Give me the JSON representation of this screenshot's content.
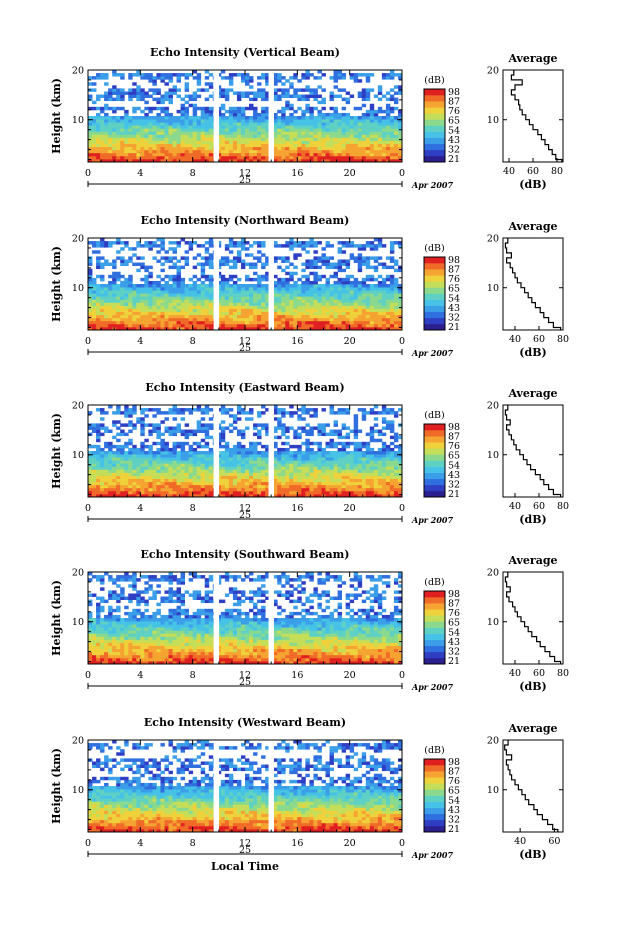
{
  "colors": {
    "scale": [
      "#2b1e8f",
      "#2f3fc4",
      "#2f6fe0",
      "#3a9ee8",
      "#46c2e6",
      "#5fd1c4",
      "#8ad98c",
      "#c4de5a",
      "#efd13c",
      "#f5a432",
      "#f06a28",
      "#e02020"
    ],
    "background": "#ffffff",
    "frame": "#000000",
    "gap": "#ffffff"
  },
  "chart_data": [
    {
      "type": "heatmap",
      "title": "Echo Intensity (Vertical Beam)",
      "ylabel": "Height (km)",
      "y_ticks": [
        "20",
        "10"
      ],
      "x_ticks": [
        "0",
        "4",
        "8",
        "12",
        "16",
        "20",
        "0"
      ],
      "date_label": "25",
      "month_label": "Apr 2007",
      "xlim": [
        0,
        24
      ],
      "ylim": [
        1.5,
        20
      ],
      "data_gaps_hours": [
        [
          9.6,
          9.9
        ],
        [
          13.8,
          14.1
        ]
      ],
      "colorbar": {
        "label": "(dB)",
        "ticks": [
          "98",
          "87",
          "76",
          "65",
          "54",
          "43",
          "32",
          "21"
        ]
      },
      "profile": {
        "title": "Average",
        "xlabel": "(dB)",
        "x_ticks": [
          "40",
          "60",
          "80"
        ],
        "y_ticks": [
          "20",
          "10"
        ],
        "xlim": [
          35,
          85
        ],
        "heights": [
          2,
          3,
          4,
          5,
          6,
          7,
          8,
          9,
          10,
          11,
          12,
          13,
          14,
          15,
          16,
          17,
          18,
          19,
          20
        ],
        "values": [
          84,
          79,
          76,
          73,
          70,
          67,
          64,
          60,
          57,
          54,
          51,
          49,
          48,
          45,
          42,
          45,
          51,
          42,
          44
        ]
      }
    },
    {
      "type": "heatmap",
      "title": "Echo Intensity (Northward Beam)",
      "ylabel": "Height (km)",
      "y_ticks": [
        "20",
        "10"
      ],
      "x_ticks": [
        "0",
        "4",
        "8",
        "12",
        "16",
        "20",
        "0"
      ],
      "date_label": "25",
      "month_label": "Apr 2007",
      "xlim": [
        0,
        24
      ],
      "ylim": [
        1.5,
        20
      ],
      "data_gaps_hours": [
        [
          9.6,
          9.9
        ],
        [
          13.8,
          14.1
        ]
      ],
      "colorbar": {
        "label": "(dB)",
        "ticks": [
          "98",
          "87",
          "76",
          "65",
          "54",
          "43",
          "32",
          "21"
        ]
      },
      "profile": {
        "title": "Average",
        "xlabel": "(dB)",
        "x_ticks": [
          "40",
          "60",
          "80"
        ],
        "y_ticks": [
          "20",
          "10"
        ],
        "xlim": [
          30,
          80
        ],
        "heights": [
          2,
          3,
          4,
          5,
          6,
          7,
          8,
          9,
          10,
          11,
          12,
          13,
          14,
          15,
          16,
          17,
          18,
          19,
          20
        ],
        "values": [
          78,
          72,
          68,
          64,
          61,
          57,
          54,
          51,
          48,
          45,
          42,
          40,
          38,
          36,
          33,
          37,
          33,
          32,
          34
        ]
      }
    },
    {
      "type": "heatmap",
      "title": "Echo Intensity (Eastward Beam)",
      "ylabel": "Height (km)",
      "y_ticks": [
        "20",
        "10"
      ],
      "x_ticks": [
        "0",
        "4",
        "8",
        "12",
        "16",
        "20",
        "0"
      ],
      "date_label": "25",
      "month_label": "Apr 2007",
      "xlim": [
        0,
        24
      ],
      "ylim": [
        1.5,
        20
      ],
      "data_gaps_hours": [
        [
          9.6,
          9.9
        ],
        [
          13.8,
          14.1
        ]
      ],
      "colorbar": {
        "label": "(dB)",
        "ticks": [
          "98",
          "87",
          "76",
          "65",
          "54",
          "43",
          "32",
          "21"
        ]
      },
      "profile": {
        "title": "Average",
        "xlabel": "(dB)",
        "x_ticks": [
          "40",
          "60",
          "80"
        ],
        "y_ticks": [
          "20",
          "10"
        ],
        "xlim": [
          30,
          80
        ],
        "heights": [
          2,
          3,
          4,
          5,
          6,
          7,
          8,
          9,
          10,
          11,
          12,
          13,
          14,
          15,
          16,
          17,
          18,
          19,
          20
        ],
        "values": [
          78,
          72,
          68,
          64,
          61,
          57,
          53,
          50,
          47,
          44,
          41,
          39,
          37,
          35,
          33,
          36,
          33,
          32,
          34
        ]
      }
    },
    {
      "type": "heatmap",
      "title": "Echo Intensity (Southward Beam)",
      "ylabel": "Height (km)",
      "y_ticks": [
        "20",
        "10"
      ],
      "x_ticks": [
        "0",
        "4",
        "8",
        "12",
        "16",
        "20",
        "0"
      ],
      "date_label": "25",
      "month_label": "Apr 2007",
      "xlim": [
        0,
        24
      ],
      "ylim": [
        1.5,
        20
      ],
      "data_gaps_hours": [
        [
          9.6,
          9.9
        ],
        [
          13.8,
          14.1
        ]
      ],
      "colorbar": {
        "label": "(dB)",
        "ticks": [
          "98",
          "87",
          "76",
          "65",
          "54",
          "43",
          "32",
          "21"
        ]
      },
      "profile": {
        "title": "Average",
        "xlabel": "(dB)",
        "x_ticks": [
          "40",
          "60",
          "80"
        ],
        "y_ticks": [
          "20",
          "10"
        ],
        "xlim": [
          30,
          80
        ],
        "heights": [
          2,
          3,
          4,
          5,
          6,
          7,
          8,
          9,
          10,
          11,
          12,
          13,
          14,
          15,
          16,
          17,
          18,
          19,
          20
        ],
        "values": [
          78,
          73,
          69,
          65,
          61,
          58,
          54,
          51,
          48,
          45,
          42,
          40,
          38,
          35,
          33,
          36,
          33,
          32,
          34
        ]
      }
    },
    {
      "type": "heatmap",
      "title": "Echo Intensity (Westward Beam)",
      "ylabel": "Height (km)",
      "y_ticks": [
        "20",
        "10"
      ],
      "x_ticks": [
        "0",
        "4",
        "8",
        "12",
        "16",
        "20",
        "0"
      ],
      "date_label": "25",
      "month_label": "Apr 2007",
      "xlabel": "Local Time",
      "xlim": [
        0,
        24
      ],
      "ylim": [
        1.5,
        20
      ],
      "data_gaps_hours": [
        [
          9.6,
          9.9
        ],
        [
          13.8,
          14.1
        ]
      ],
      "colorbar": {
        "label": "(dB)",
        "ticks": [
          "98",
          "87",
          "76",
          "65",
          "54",
          "43",
          "32",
          "21"
        ]
      },
      "profile": {
        "title": "Average",
        "xlabel": "(dB)",
        "x_ticks": [
          "40",
          "60"
        ],
        "y_ticks": [
          "20",
          "10"
        ],
        "xlim": [
          30,
          65
        ],
        "heights": [
          2,
          3,
          4,
          5,
          6,
          7,
          8,
          9,
          10,
          11,
          12,
          13,
          14,
          15,
          16,
          17,
          18,
          19,
          20
        ],
        "values": [
          62,
          59,
          56,
          53,
          50,
          48,
          45,
          43,
          41,
          39,
          37,
          35,
          34,
          33,
          32,
          35,
          32,
          31,
          33
        ]
      }
    }
  ]
}
